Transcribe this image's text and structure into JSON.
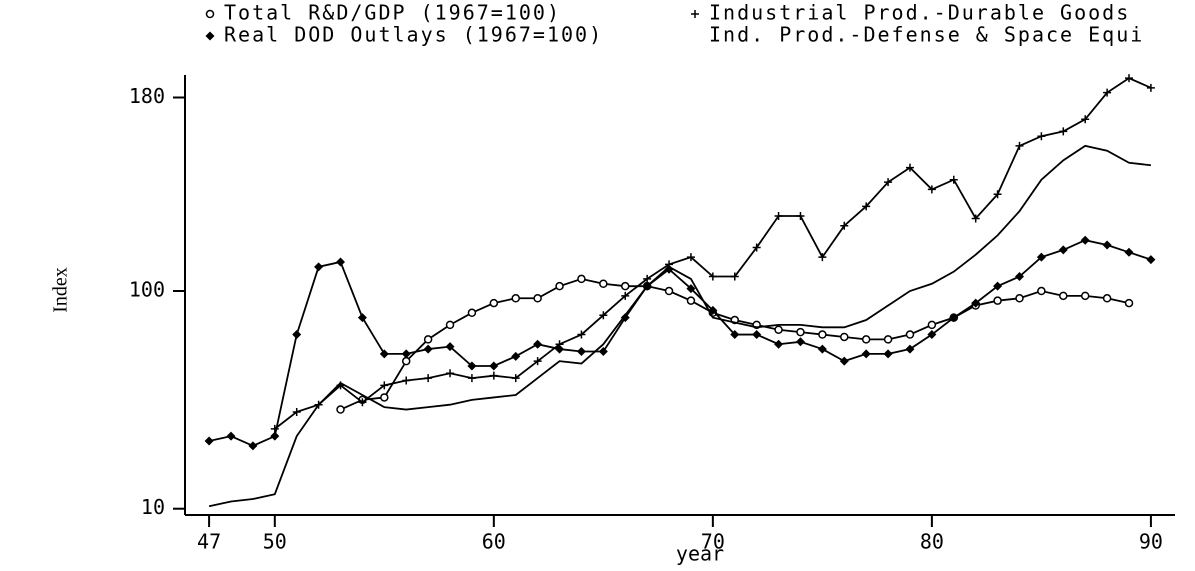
{
  "chart_data": {
    "type": "line",
    "x_label": "year",
    "y_label": "Index",
    "x": [
      47,
      48,
      49,
      50,
      51,
      52,
      53,
      54,
      55,
      56,
      57,
      58,
      59,
      60,
      61,
      62,
      63,
      64,
      65,
      66,
      67,
      68,
      69,
      70,
      71,
      72,
      73,
      74,
      75,
      76,
      77,
      78,
      79,
      80,
      81,
      82,
      83,
      84,
      85,
      86,
      87,
      88,
      89,
      90
    ],
    "series": [
      {
        "name": "Total R&D/GDP (1967=100)",
        "color": "#000000",
        "marker": "circle",
        "values": [
          null,
          null,
          null,
          null,
          null,
          null,
          51,
          55,
          56,
          71,
          80,
          86,
          91,
          95,
          97,
          97,
          102,
          105,
          103,
          102,
          102,
          100,
          96,
          91,
          88,
          86,
          84,
          83,
          82,
          81,
          80,
          80,
          82,
          86,
          89,
          94,
          96,
          97,
          100,
          98,
          98,
          97,
          95,
          null
        ]
      },
      {
        "name": "Real DOD Outlays (1967=100)",
        "color": "#000000",
        "marker": "diamond",
        "values": [
          38,
          40,
          36,
          40,
          82,
          110,
          112,
          89,
          74,
          74,
          76,
          77,
          69,
          69,
          73,
          78,
          76,
          75,
          75,
          89,
          102,
          109,
          101,
          92,
          82,
          82,
          78,
          79,
          76,
          71,
          74,
          74,
          76,
          82,
          89,
          95,
          102,
          106,
          114,
          117,
          121,
          119,
          116,
          113
        ]
      },
      {
        "name": "Industrial Prod.-Durable Goods",
        "color": "#000000",
        "marker": "plus",
        "values": [
          null,
          null,
          null,
          43,
          50,
          53,
          61,
          54,
          61,
          63,
          64,
          66,
          64,
          65,
          64,
          71,
          78,
          82,
          90,
          98,
          105,
          111,
          114,
          106,
          106,
          118,
          131,
          131,
          114,
          127,
          135,
          145,
          151,
          142,
          146,
          130,
          140,
          160,
          164,
          166,
          171,
          182,
          188,
          184
        ]
      },
      {
        "name": "Ind. Prod.-Defense & Space Equi",
        "color": "#000000",
        "values": [
          11,
          13,
          14,
          16,
          40,
          53,
          62,
          57,
          52,
          51,
          52,
          53,
          55,
          56,
          57,
          64,
          71,
          70,
          78,
          90,
          102,
          110,
          105,
          89,
          87,
          85,
          86,
          86,
          85,
          85,
          88,
          94,
          100,
          103,
          108,
          115,
          123,
          133,
          146,
          154,
          160,
          158,
          153,
          152
        ]
      }
    ],
    "xlim": [
      45.9,
      91.1
    ],
    "xticks": [
      47,
      50,
      60,
      70,
      80,
      90
    ],
    "ylim": [
      7.4,
      189.3
    ],
    "yticks": [
      10,
      100,
      180
    ]
  }
}
